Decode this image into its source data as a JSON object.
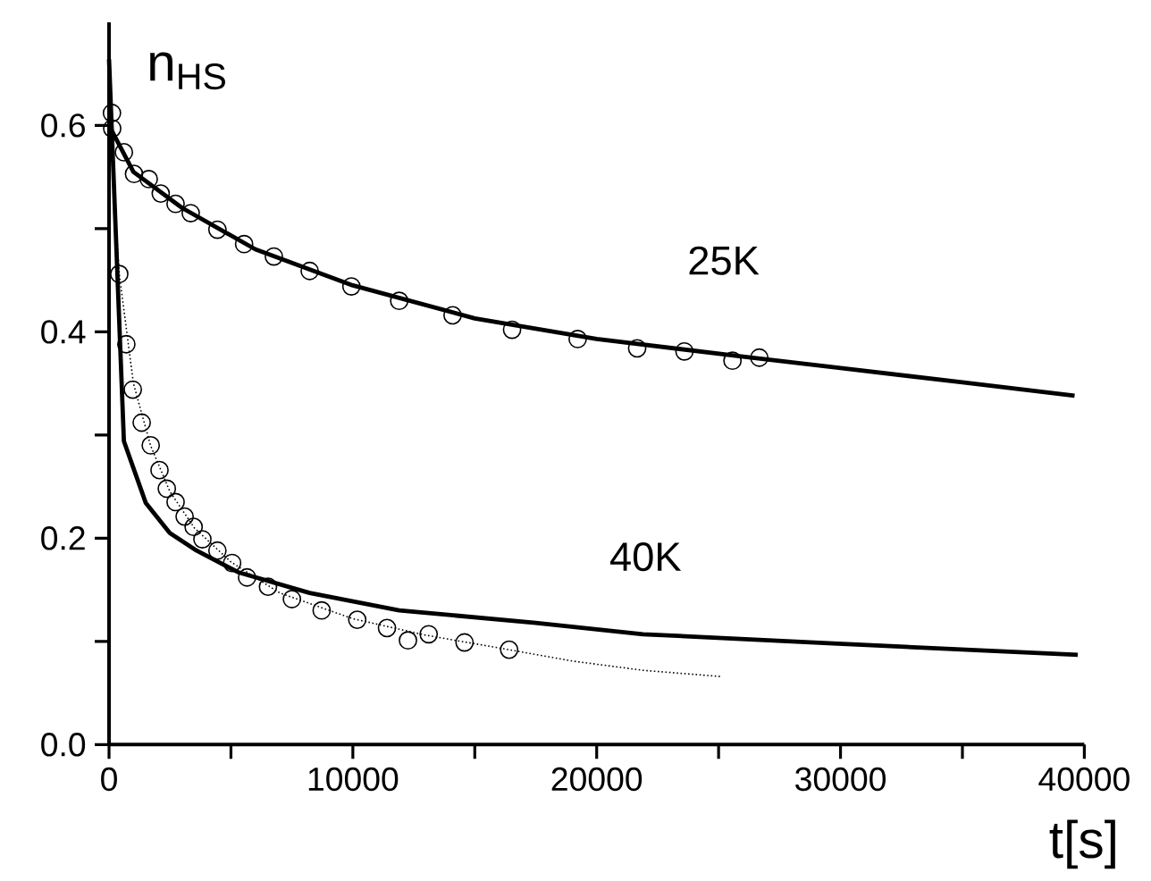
{
  "chart_data": {
    "type": "line",
    "xlabel": "t[s]",
    "ylabel": "n$_{HS}$",
    "xlim": [
      0,
      40000
    ],
    "ylim": [
      0,
      0.7
    ],
    "xticks": [
      0,
      {
        "value": 5000,
        "label": null
      },
      10000,
      {
        "value": 15000,
        "label": null
      },
      20000,
      {
        "value": 25000,
        "label": null
      },
      30000,
      {
        "value": 35000,
        "label": null
      },
      40000
    ],
    "yticks": [
      {
        "value": 0,
        "label": "0.0"
      },
      {
        "value": 0.1,
        "label": null
      },
      0.2,
      {
        "value": 0.3,
        "label": null
      },
      0.4,
      {
        "value": 0.5,
        "label": null
      },
      0.6
    ],
    "annotations": [
      "25K",
      "40K"
    ],
    "series": [
      {
        "type": "scatter",
        "marker": "circle",
        "color": "#000000",
        "x": [
          120,
          130,
          610,
          1025,
          1630,
          2120,
          2730,
          3350,
          4445,
          5540,
          6760,
          8230,
          9940,
          11900,
          14090,
          16530,
          19220,
          21660,
          23600,
          25570,
          26670
        ],
        "values": [
          0.612,
          0.597,
          0.574,
          0.553,
          0.548,
          0.534,
          0.524,
          0.515,
          0.499,
          0.485,
          0.473,
          0.459,
          0.444,
          0.43,
          0.416,
          0.402,
          0.393,
          0.384,
          0.381,
          0.372,
          0.375
        ]
      },
      {
        "line_style": "solid",
        "color": "#000000",
        "x": [
          0,
          1000,
          3000,
          6000,
          10000,
          15000,
          20000,
          26000,
          30000,
          35000,
          39600
        ],
        "values": [
          0.6,
          0.555,
          0.52,
          0.48,
          0.445,
          0.413,
          0.393,
          0.376,
          0.365,
          0.351,
          0.338
        ]
      },
      {
        "type": "scatter",
        "marker": "circle",
        "color": "#000000",
        "x": [
          420,
          710,
          975,
          1340,
          1710,
          2070,
          2370,
          2730,
          3100,
          3470,
          3830,
          4445,
          5050,
          5660,
          6520,
          7500,
          8720,
          10180,
          11400,
          12260,
          13110,
          14580,
          16410
        ],
        "values": [
          0.456,
          0.388,
          0.344,
          0.312,
          0.29,
          0.266,
          0.248,
          0.235,
          0.221,
          0.211,
          0.199,
          0.188,
          0.176,
          0.162,
          0.153,
          0.141,
          0.13,
          0.121,
          0.113,
          0.101,
          0.107,
          0.099,
          0.092
        ]
      },
      {
        "line_style": "dotted",
        "color": "#000000",
        "x": [
          0,
          420,
          1000,
          1700,
          2500,
          3500,
          5000,
          7000,
          10000,
          13000,
          16400,
          19000,
          21900,
          25080
        ],
        "values": [
          0.61,
          0.456,
          0.35,
          0.29,
          0.245,
          0.21,
          0.177,
          0.147,
          0.122,
          0.106,
          0.092,
          0.081,
          0.072,
          0.066
        ]
      },
      {
        "line_style": "solid",
        "color": "#000000",
        "x": [
          0,
          610,
          1510,
          2490,
          3590,
          5300,
          8230,
          11900,
          17500,
          21900,
          29700,
          39730
        ],
        "values": [
          0.664,
          0.294,
          0.234,
          0.205,
          0.188,
          0.167,
          0.147,
          0.13,
          0.118,
          0.107,
          0.098,
          0.087
        ]
      }
    ]
  }
}
